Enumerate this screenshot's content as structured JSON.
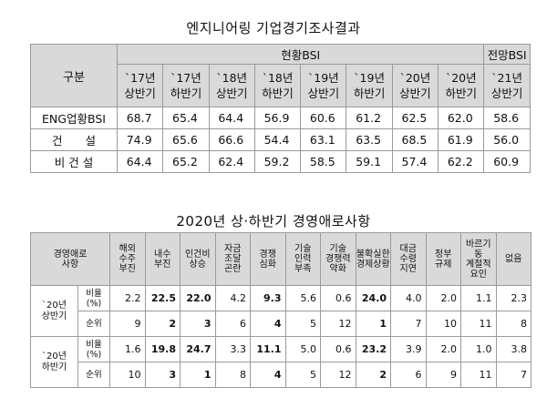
{
  "table1": {
    "title": "엔지니어링 기업경기조사결과",
    "header_group": "현황BSI",
    "header_forecast": "전망BSI",
    "corner": "구분",
    "periods": [
      {
        "year": "`17년",
        "half": "상반기"
      },
      {
        "year": "`17년",
        "half": "하반기"
      },
      {
        "year": "`18년",
        "half": "상반기"
      },
      {
        "year": "`18년",
        "half": "하반기"
      },
      {
        "year": "`19년",
        "half": "상반기"
      },
      {
        "year": "`19년",
        "half": "하반기"
      },
      {
        "year": "`20년",
        "half": "상반기"
      },
      {
        "year": "`20년",
        "half": "하반기"
      },
      {
        "year": "`21년",
        "half": "상반기"
      }
    ],
    "rows": [
      {
        "label": "ENG업황BSI",
        "values": [
          "68.7",
          "65.4",
          "64.4",
          "56.9",
          "60.6",
          "61.2",
          "62.5",
          "62.0",
          "58.6"
        ]
      },
      {
        "label": "건　　설",
        "values": [
          "74.9",
          "65.6",
          "66.6",
          "54.4",
          "63.1",
          "63.5",
          "68.5",
          "61.9",
          "56.0"
        ]
      },
      {
        "label": "비 건 설",
        "values": [
          "64.4",
          "65.2",
          "62.4",
          "59.2",
          "58.5",
          "59.1",
          "57.4",
          "62.2",
          "60.9"
        ]
      }
    ]
  },
  "table2": {
    "title": "2020년 상·하반기 경영애로사항",
    "corner": "경영애로\n사항",
    "headers": [
      "해외\n수주\n부진",
      "내수\n부진",
      "인건비\n상승",
      "자금\n조달\n곤란",
      "경쟁\n심화",
      "기술\n인력\n부족",
      "기술\n경쟁력\n약화",
      "불확실한\n경제상황",
      "대금\n수령\n지연",
      "정부\n규제",
      "바르기\n동\n계절적\n요인",
      "없음"
    ],
    "groups": [
      {
        "label": "`20년\n상반기",
        "rows": [
          {
            "sub": "비율\n(%)",
            "values": [
              "2.2",
              "22.5",
              "22.0",
              "4.2",
              "9.3",
              "5.6",
              "0.6",
              "24.0",
              "4.0",
              "2.0",
              "1.1",
              "2.3"
            ],
            "bold": [
              1,
              2,
              4,
              7
            ]
          },
          {
            "sub": "순위",
            "values": [
              "9",
              "2",
              "3",
              "6",
              "4",
              "5",
              "12",
              "1",
              "7",
              "10",
              "11",
              "8"
            ],
            "bold": [
              1,
              2,
              4,
              7
            ]
          }
        ]
      },
      {
        "label": "`20년\n하반기",
        "rows": [
          {
            "sub": "비율\n(%)",
            "values": [
              "1.6",
              "19.8",
              "24.7",
              "3.3",
              "11.1",
              "5.0",
              "0.6",
              "23.2",
              "3.9",
              "2.0",
              "1.0",
              "3.8"
            ],
            "bold": [
              1,
              2,
              4,
              7
            ]
          },
          {
            "sub": "순위",
            "values": [
              "10",
              "3",
              "1",
              "8",
              "4",
              "5",
              "12",
              "2",
              "6",
              "9",
              "11",
              "7"
            ],
            "bold": [
              1,
              2,
              4,
              7
            ]
          }
        ]
      }
    ]
  }
}
